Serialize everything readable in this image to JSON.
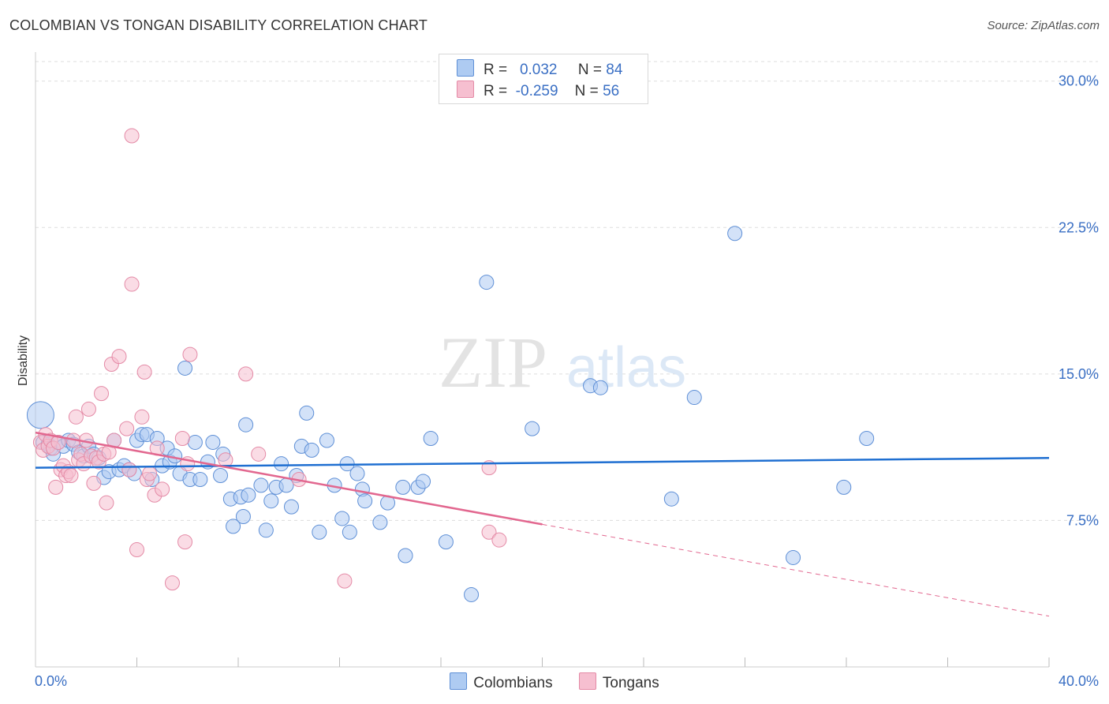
{
  "header": {
    "title": "COLOMBIAN VS TONGAN DISABILITY CORRELATION CHART",
    "source": "Source: ZipAtlas.com"
  },
  "legend": {
    "rows": [
      {
        "r_label": "R =",
        "r_value": "0.032",
        "n_label": "N =",
        "n_value": "84"
      },
      {
        "r_label": "R =",
        "r_value": "-0.259",
        "n_label": "N =",
        "n_value": "56"
      }
    ]
  },
  "watermark": {
    "zip": "ZIP",
    "atlas": "atlas"
  },
  "colors": {
    "colombians_fill": "#aecbf2",
    "colombians_stroke": "#5e8fd6",
    "colombians_line": "#1f6fd1",
    "tongans_fill": "#f6bfd0",
    "tongans_stroke": "#e48aa6",
    "tongans_line": "#e2678f",
    "grid": "#dddddd",
    "tick_text": "#3a6fc4"
  },
  "chart_data": {
    "type": "scatter",
    "title": "COLOMBIAN VS TONGAN DISABILITY CORRELATION CHART",
    "ylabel": "Disability",
    "xlabel": "",
    "xlim": [
      0,
      40
    ],
    "ylim": [
      0,
      31
    ],
    "x_tick_labels": [
      "0.0%",
      "40.0%"
    ],
    "y_ticks": [
      7.5,
      15.0,
      22.5,
      30.0
    ],
    "y_tick_labels": [
      "7.5%",
      "15.0%",
      "22.5%",
      "30.0%"
    ],
    "grid": true,
    "legend_position": "bottom",
    "series": [
      {
        "name": "Colombians",
        "r": 0.032,
        "n": 84,
        "trend": {
          "x": [
            0,
            40
          ],
          "y": [
            10.2,
            10.7
          ],
          "dashed_from": null
        },
        "points": [
          [
            0.2,
            12.9
          ],
          [
            0.3,
            11.5
          ],
          [
            0.5,
            11.4
          ],
          [
            0.6,
            11.2
          ],
          [
            0.7,
            10.9
          ],
          [
            0.9,
            11.5
          ],
          [
            1.1,
            11.3
          ],
          [
            1.3,
            11.6
          ],
          [
            1.5,
            11.4
          ],
          [
            1.7,
            11.0
          ],
          [
            1.9,
            10.8
          ],
          [
            2.1,
            11.3
          ],
          [
            2.3,
            10.9
          ],
          [
            2.5,
            10.7
          ],
          [
            2.7,
            9.7
          ],
          [
            2.9,
            10.0
          ],
          [
            3.1,
            11.6
          ],
          [
            3.3,
            10.1
          ],
          [
            3.5,
            10.3
          ],
          [
            3.7,
            10.1
          ],
          [
            3.9,
            9.9
          ],
          [
            4.0,
            11.6
          ],
          [
            4.2,
            11.9
          ],
          [
            4.4,
            11.9
          ],
          [
            4.6,
            9.6
          ],
          [
            4.8,
            11.7
          ],
          [
            5.0,
            10.3
          ],
          [
            5.2,
            11.2
          ],
          [
            5.3,
            10.5
          ],
          [
            5.5,
            10.8
          ],
          [
            5.7,
            9.9
          ],
          [
            5.9,
            15.3
          ],
          [
            6.1,
            9.6
          ],
          [
            6.3,
            11.5
          ],
          [
            6.5,
            9.6
          ],
          [
            6.8,
            10.5
          ],
          [
            7.0,
            11.5
          ],
          [
            7.3,
            9.8
          ],
          [
            7.4,
            10.9
          ],
          [
            7.7,
            8.6
          ],
          [
            7.8,
            7.2
          ],
          [
            8.1,
            8.7
          ],
          [
            8.2,
            7.7
          ],
          [
            8.3,
            12.4
          ],
          [
            8.4,
            8.8
          ],
          [
            8.9,
            9.3
          ],
          [
            9.1,
            7.0
          ],
          [
            9.3,
            8.5
          ],
          [
            9.5,
            9.2
          ],
          [
            9.7,
            10.4
          ],
          [
            9.9,
            9.3
          ],
          [
            10.1,
            8.2
          ],
          [
            10.3,
            9.8
          ],
          [
            10.5,
            11.3
          ],
          [
            10.7,
            13.0
          ],
          [
            10.9,
            11.1
          ],
          [
            11.2,
            6.9
          ],
          [
            11.5,
            11.6
          ],
          [
            11.8,
            9.3
          ],
          [
            12.1,
            7.6
          ],
          [
            12.3,
            10.4
          ],
          [
            12.4,
            6.9
          ],
          [
            12.7,
            9.9
          ],
          [
            12.9,
            9.1
          ],
          [
            13.0,
            8.5
          ],
          [
            13.6,
            7.4
          ],
          [
            13.9,
            8.4
          ],
          [
            14.5,
            9.2
          ],
          [
            14.6,
            5.7
          ],
          [
            15.1,
            9.2
          ],
          [
            15.3,
            9.5
          ],
          [
            15.6,
            11.7
          ],
          [
            16.2,
            6.4
          ],
          [
            17.2,
            3.7
          ],
          [
            17.8,
            19.7
          ],
          [
            19.6,
            12.2
          ],
          [
            21.9,
            14.4
          ],
          [
            22.3,
            14.3
          ],
          [
            25.1,
            8.6
          ],
          [
            26.0,
            13.8
          ],
          [
            27.6,
            22.2
          ],
          [
            29.9,
            5.6
          ],
          [
            31.9,
            9.2
          ],
          [
            32.8,
            11.7
          ]
        ]
      },
      {
        "name": "Tongans",
        "r": -0.259,
        "n": 56,
        "trend": {
          "x": [
            0,
            40
          ],
          "y": [
            12.0,
            2.6
          ],
          "solid_until_x": 20
        },
        "points": [
          [
            0.2,
            11.5
          ],
          [
            0.3,
            11.1
          ],
          [
            0.4,
            11.9
          ],
          [
            0.5,
            11.3
          ],
          [
            0.6,
            11.6
          ],
          [
            0.7,
            11.2
          ],
          [
            0.8,
            9.2
          ],
          [
            0.9,
            11.5
          ],
          [
            1.0,
            10.1
          ],
          [
            1.1,
            10.3
          ],
          [
            1.2,
            9.8
          ],
          [
            1.3,
            10.0
          ],
          [
            1.4,
            9.8
          ],
          [
            1.5,
            11.6
          ],
          [
            1.6,
            12.8
          ],
          [
            1.7,
            10.6
          ],
          [
            1.8,
            10.9
          ],
          [
            1.9,
            10.4
          ],
          [
            2.0,
            11.6
          ],
          [
            2.1,
            13.2
          ],
          [
            2.2,
            10.8
          ],
          [
            2.3,
            9.4
          ],
          [
            2.4,
            10.7
          ],
          [
            2.5,
            10.5
          ],
          [
            2.6,
            14.0
          ],
          [
            2.7,
            10.9
          ],
          [
            2.8,
            8.4
          ],
          [
            2.9,
            11.0
          ],
          [
            3.0,
            15.5
          ],
          [
            3.1,
            11.6
          ],
          [
            3.3,
            15.9
          ],
          [
            3.6,
            12.2
          ],
          [
            3.7,
            10.1
          ],
          [
            3.8,
            19.6
          ],
          [
            3.8,
            27.2
          ],
          [
            4.0,
            6.0
          ],
          [
            4.2,
            12.8
          ],
          [
            4.3,
            15.1
          ],
          [
            4.4,
            9.6
          ],
          [
            4.5,
            9.9
          ],
          [
            4.7,
            8.8
          ],
          [
            4.8,
            11.2
          ],
          [
            5.0,
            9.1
          ],
          [
            5.4,
            4.3
          ],
          [
            5.8,
            11.7
          ],
          [
            5.9,
            6.4
          ],
          [
            6.0,
            10.4
          ],
          [
            6.1,
            16.0
          ],
          [
            7.5,
            10.6
          ],
          [
            8.3,
            15.0
          ],
          [
            8.8,
            10.9
          ],
          [
            10.4,
            9.6
          ],
          [
            12.2,
            4.4
          ],
          [
            17.9,
            6.9
          ],
          [
            17.9,
            10.2
          ],
          [
            18.3,
            6.5
          ]
        ]
      }
    ]
  },
  "bottom_legend": {
    "items": [
      {
        "label": "Colombians"
      },
      {
        "label": "Tongans"
      }
    ]
  }
}
